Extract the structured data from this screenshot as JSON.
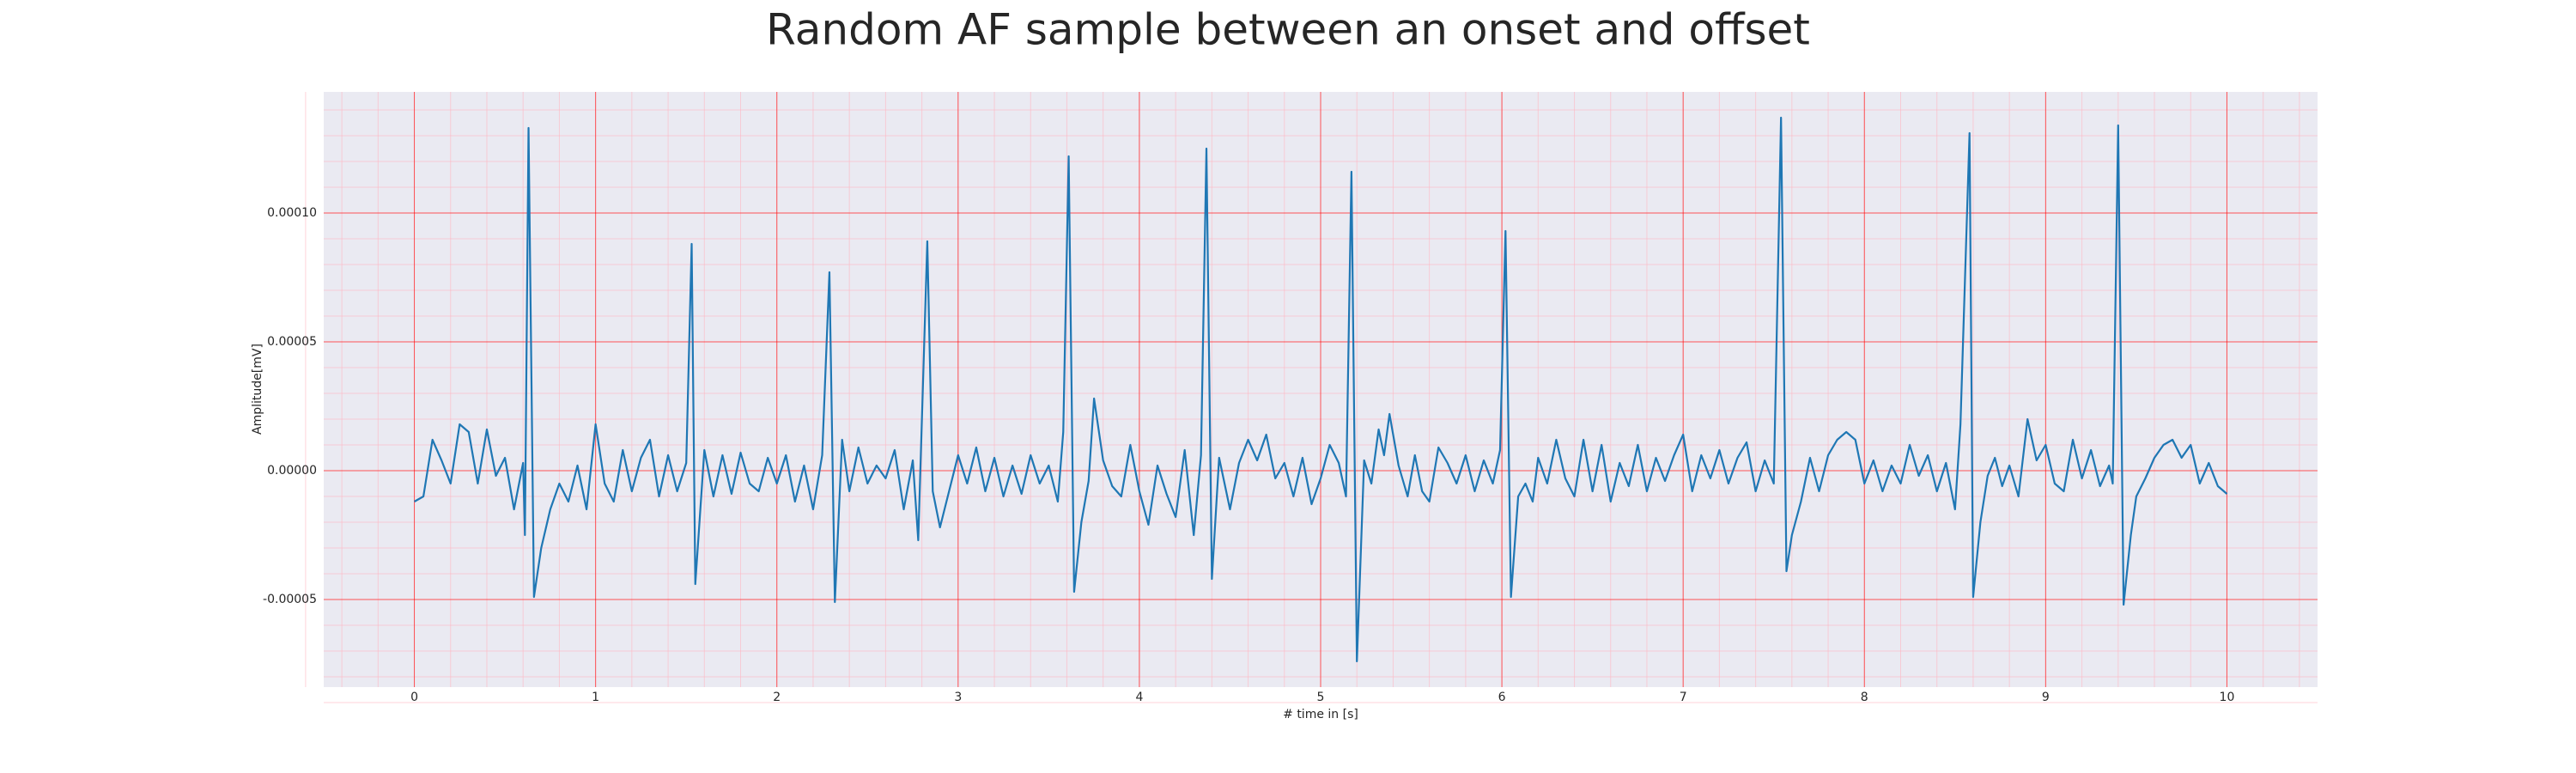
{
  "chart_data": {
    "type": "line",
    "title": "Random AF sample between an onset and offset",
    "xlabel": "# time in [s]",
    "ylabel": "Amplitude[mV]",
    "color": "#1f77b4",
    "grid": true,
    "xlim": [
      -0.5,
      10.5
    ],
    "ylim": [
      -8.4e-05,
      0.000147
    ],
    "xticks": [
      0,
      1,
      2,
      3,
      4,
      5,
      6,
      7,
      8,
      9,
      10
    ],
    "yticks": [
      {
        "value": -5e-05,
        "label": "-0.00005"
      },
      {
        "value": 0,
        "label": "0.00000"
      },
      {
        "value": 5e-05,
        "label": "0.00005"
      },
      {
        "value": 0.0001,
        "label": "0.00010"
      }
    ],
    "x": [
      0.0,
      0.05,
      0.1,
      0.15,
      0.2,
      0.25,
      0.3,
      0.35,
      0.4,
      0.45,
      0.5,
      0.55,
      0.6,
      0.61,
      0.63,
      0.66,
      0.7,
      0.75,
      0.8,
      0.85,
      0.9,
      0.95,
      1.0,
      1.05,
      1.1,
      1.15,
      1.2,
      1.25,
      1.3,
      1.35,
      1.4,
      1.45,
      1.5,
      1.53,
      1.55,
      1.6,
      1.65,
      1.7,
      1.75,
      1.8,
      1.85,
      1.9,
      1.95,
      2.0,
      2.05,
      2.1,
      2.15,
      2.2,
      2.25,
      2.29,
      2.32,
      2.36,
      2.4,
      2.45,
      2.5,
      2.55,
      2.6,
      2.65,
      2.7,
      2.75,
      2.78,
      2.83,
      2.86,
      2.9,
      2.95,
      3.0,
      3.05,
      3.1,
      3.15,
      3.2,
      3.25,
      3.3,
      3.35,
      3.4,
      3.45,
      3.5,
      3.55,
      3.58,
      3.61,
      3.64,
      3.68,
      3.72,
      3.75,
      3.8,
      3.85,
      3.9,
      3.95,
      4.0,
      4.05,
      4.1,
      4.15,
      4.2,
      4.25,
      4.3,
      4.34,
      4.37,
      4.4,
      4.44,
      4.5,
      4.55,
      4.6,
      4.65,
      4.7,
      4.75,
      4.8,
      4.85,
      4.9,
      4.95,
      5.0,
      5.05,
      5.1,
      5.14,
      5.17,
      5.2,
      5.24,
      5.28,
      5.32,
      5.35,
      5.38,
      5.43,
      5.48,
      5.52,
      5.56,
      5.6,
      5.65,
      5.7,
      5.75,
      5.8,
      5.85,
      5.9,
      5.95,
      5.99,
      6.02,
      6.05,
      6.09,
      6.13,
      6.17,
      6.2,
      6.25,
      6.3,
      6.35,
      6.4,
      6.45,
      6.5,
      6.55,
      6.6,
      6.65,
      6.7,
      6.75,
      6.8,
      6.85,
      6.9,
      6.95,
      7.0,
      7.05,
      7.1,
      7.15,
      7.2,
      7.25,
      7.3,
      7.35,
      7.4,
      7.45,
      7.5,
      7.54,
      7.57,
      7.6,
      7.65,
      7.7,
      7.75,
      7.8,
      7.85,
      7.9,
      7.95,
      8.0,
      8.05,
      8.1,
      8.15,
      8.2,
      8.25,
      8.3,
      8.35,
      8.4,
      8.45,
      8.5,
      8.53,
      8.58,
      8.6,
      8.64,
      8.68,
      8.72,
      8.76,
      8.8,
      8.85,
      8.9,
      8.95,
      9.0,
      9.05,
      9.1,
      9.15,
      9.2,
      9.25,
      9.3,
      9.35,
      9.37,
      9.4,
      9.43,
      9.47,
      9.5,
      9.55,
      9.6,
      9.65,
      9.7,
      9.75,
      9.8,
      9.85,
      9.9,
      9.95,
      10.0
    ],
    "values": [
      -1.2e-05,
      -1e-05,
      1.2e-05,
      4e-06,
      -5e-06,
      1.8e-05,
      1.5e-05,
      -5e-06,
      1.6e-05,
      -2e-06,
      5e-06,
      -1.5e-05,
      3e-06,
      -2.5e-05,
      0.000133,
      -4.9e-05,
      -3e-05,
      -1.5e-05,
      -5e-06,
      -1.2e-05,
      2e-06,
      -1.5e-05,
      1.8e-05,
      -5e-06,
      -1.2e-05,
      8e-06,
      -8e-06,
      5e-06,
      1.2e-05,
      -1e-05,
      6e-06,
      -8e-06,
      3e-06,
      8.8e-05,
      -4.4e-05,
      8e-06,
      -1e-05,
      6e-06,
      -9e-06,
      7e-06,
      -5e-06,
      -8e-06,
      5e-06,
      -5e-06,
      6e-06,
      -1.2e-05,
      2e-06,
      -1.5e-05,
      6e-06,
      7.7e-05,
      -5.1e-05,
      1.2e-05,
      -8e-06,
      9e-06,
      -5e-06,
      2e-06,
      -3e-06,
      8e-06,
      -1.5e-05,
      4e-06,
      -2.7e-05,
      8.9e-05,
      -8e-06,
      -2.2e-05,
      -8e-06,
      6e-06,
      -5e-06,
      9e-06,
      -8e-06,
      5e-06,
      -1e-05,
      2e-06,
      -9e-06,
      6e-06,
      -5e-06,
      2e-06,
      -1.2e-05,
      1.5e-05,
      0.000122,
      -4.7e-05,
      -2e-05,
      -4e-06,
      2.8e-05,
      4e-06,
      -6e-06,
      -1e-05,
      1e-05,
      -8e-06,
      -2.1e-05,
      2e-06,
      -9e-06,
      -1.8e-05,
      8e-06,
      -2.5e-05,
      6e-06,
      0.000125,
      -4.2e-05,
      5e-06,
      -1.5e-05,
      3e-06,
      1.2e-05,
      4e-06,
      1.4e-05,
      -3e-06,
      3e-06,
      -1e-05,
      5e-06,
      -1.3e-05,
      -3e-06,
      1e-05,
      3e-06,
      -1e-05,
      0.000116,
      -7.4e-05,
      4e-06,
      -5e-06,
      1.6e-05,
      6e-06,
      2.2e-05,
      2e-06,
      -1e-05,
      6e-06,
      -8e-06,
      -1.2e-05,
      9e-06,
      3e-06,
      -5e-06,
      6e-06,
      -8e-06,
      4e-06,
      -5e-06,
      8e-06,
      9.3e-05,
      -4.9e-05,
      -1e-05,
      -5e-06,
      -1.2e-05,
      5e-06,
      -5e-06,
      1.2e-05,
      -3e-06,
      -1e-05,
      1.2e-05,
      -8e-06,
      1e-05,
      -1.2e-05,
      3e-06,
      -6e-06,
      1e-05,
      -8e-06,
      5e-06,
      -4e-06,
      6e-06,
      1.4e-05,
      -8e-06,
      6e-06,
      -3e-06,
      8e-06,
      -5e-06,
      5e-06,
      1.1e-05,
      -8e-06,
      4e-06,
      -5e-06,
      0.000137,
      -3.9e-05,
      -2.5e-05,
      -1.2e-05,
      5e-06,
      -8e-06,
      6e-06,
      1.2e-05,
      1.5e-05,
      1.2e-05,
      -5e-06,
      4e-06,
      -8e-06,
      2e-06,
      -5e-06,
      1e-05,
      -2e-06,
      6e-06,
      -8e-06,
      3e-06,
      -1.5e-05,
      1.8e-05,
      0.000131,
      -4.9e-05,
      -2e-05,
      -2e-06,
      5e-06,
      -6e-06,
      2e-06,
      -1e-05,
      2e-05,
      4e-06,
      1e-05,
      -5e-06,
      -8e-06,
      1.2e-05,
      -3e-06,
      8e-06,
      -6e-06,
      2e-06,
      -5e-06,
      0.000134,
      -5.2e-05,
      -2.5e-05,
      -1e-05,
      -3e-06,
      5e-06,
      1e-05,
      1.2e-05,
      5e-06,
      1e-05,
      -5e-06,
      3e-06,
      -6e-06,
      -9e-06
    ]
  }
}
